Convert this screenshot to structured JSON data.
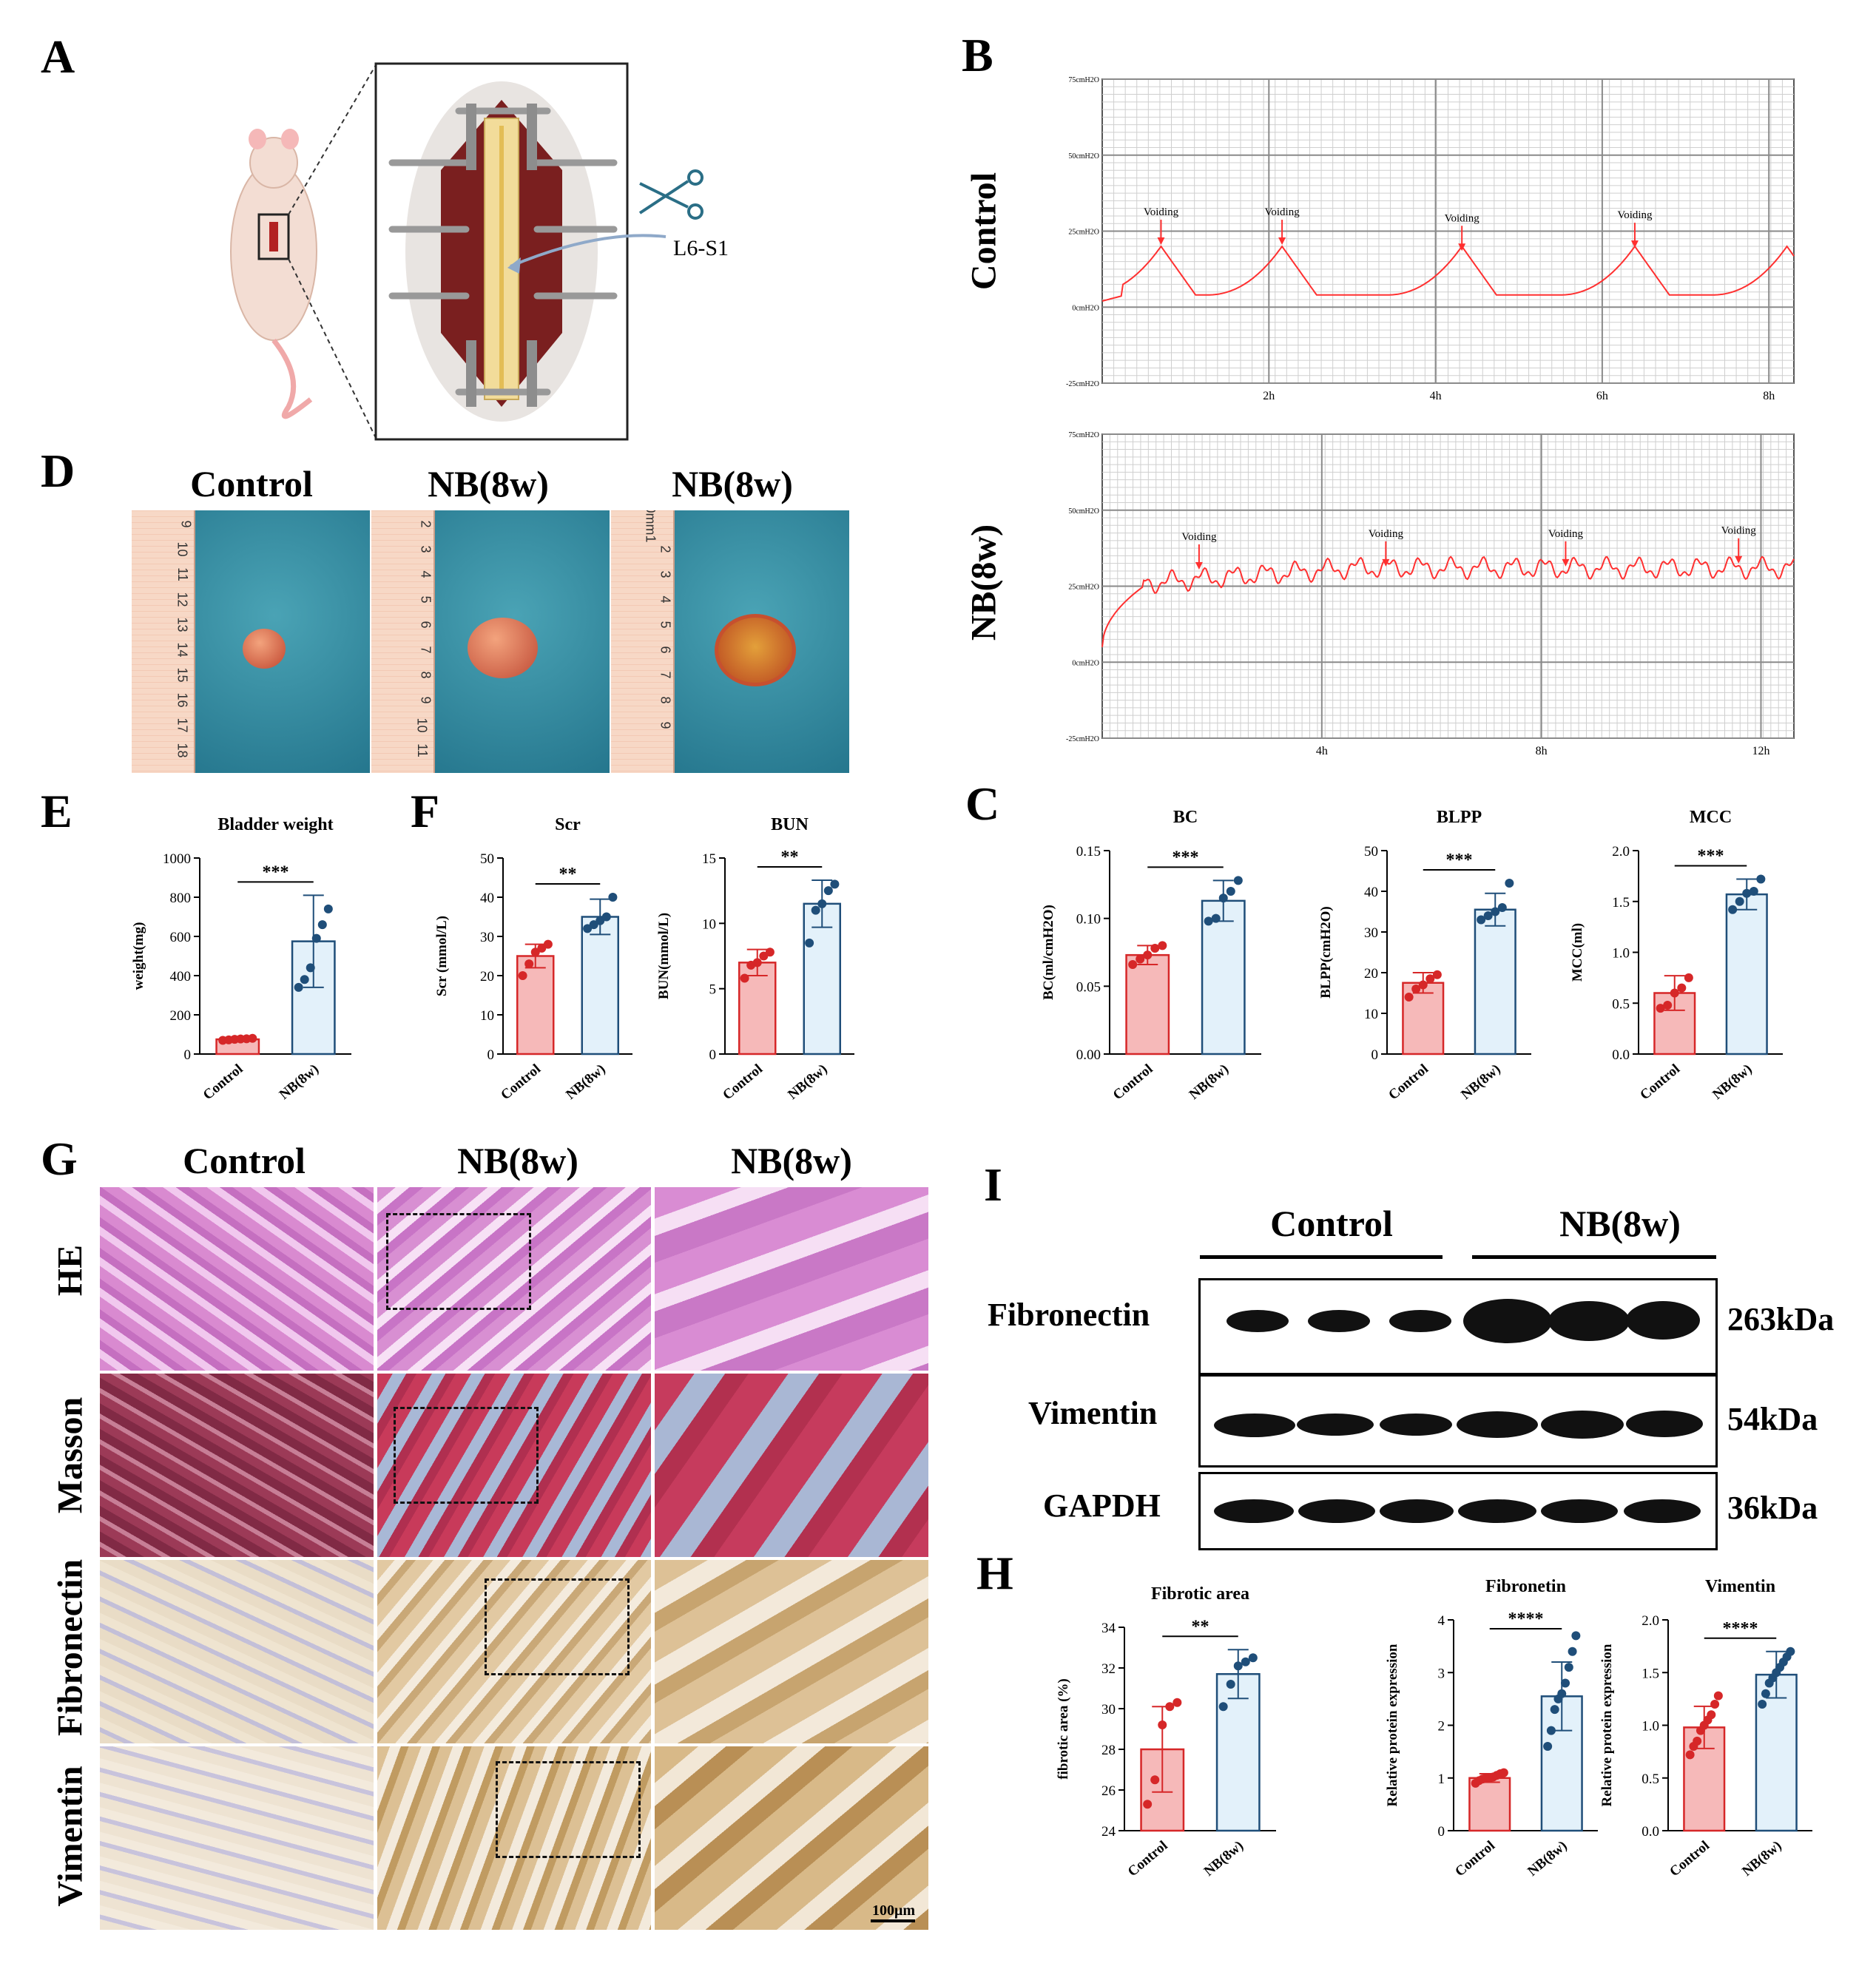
{
  "panels": {
    "A": "A",
    "B": "B",
    "C": "C",
    "D": "D",
    "E": "E",
    "F": "F",
    "G": "G",
    "H": "H",
    "I": "I"
  },
  "schematic": {
    "label": "L6-S1"
  },
  "cystometry": {
    "control": {
      "label": "Control",
      "y_ticks": [
        "75cmH2O",
        "50cmH2O",
        "25cmH2O",
        "0cmH2O",
        "-25cmH2O"
      ],
      "x_ticks": [
        "2h",
        "4h",
        "6h",
        "8h"
      ],
      "annotations": [
        "Voiding",
        "Voiding",
        "Voiding",
        "Voiding"
      ]
    },
    "nb": {
      "label": "NB(8w)",
      "y_ticks": [
        "75cmH2O",
        "50cmH2O",
        "25cmH2O",
        "0cmH2O",
        "-25cmH2O"
      ],
      "x_ticks": [
        "4h",
        "8h",
        "12h"
      ],
      "annotations": [
        "Voiding",
        "Voiding",
        "Voiding",
        "Voiding"
      ]
    }
  },
  "bladder_photos": {
    "titles": [
      "Control",
      "NB(8w)",
      "NB(8w)"
    ],
    "ruler_numbers": [
      [
        "9",
        "10",
        "11",
        "12",
        "13",
        "14",
        "15",
        "16",
        "17",
        "18"
      ],
      [
        "2",
        "3",
        "4",
        "5",
        "6",
        "7",
        "8",
        "9",
        "10",
        "11"
      ],
      [
        "0mm1",
        "2",
        "3",
        "4",
        "5",
        "6",
        "7",
        "8",
        "9"
      ]
    ]
  },
  "histology": {
    "col_titles": [
      "Control",
      "NB(8w)",
      "NB(8w)"
    ],
    "row_labels": [
      "HE",
      "Masson",
      "Fibronectin",
      "Vimentin"
    ],
    "scale_bar": "100μm"
  },
  "western": {
    "groups": [
      "Control",
      "NB(8w)"
    ],
    "rows": [
      {
        "name": "Fibronectin",
        "size": "263kDa"
      },
      {
        "name": "Vimentin",
        "size": "54kDa"
      },
      {
        "name": "GAPDH",
        "size": "36kDa"
      }
    ]
  },
  "colors": {
    "control_fill": "#f6b9b9",
    "control_edge": "#d62728",
    "control_dot": "#d62728",
    "nb_fill": "#e3f1fa",
    "nb_edge": "#1f4e79",
    "nb_dot": "#1f4e79",
    "trace": "#ff3030"
  },
  "chart_data": [
    {
      "id": "E",
      "type": "bar",
      "title": "Bladder weight",
      "ylabel": "weight(mg)",
      "categories": [
        "Control",
        "NB(8w)"
      ],
      "ylim": [
        0,
        1000
      ],
      "yticks": [
        0,
        200,
        400,
        600,
        800,
        1000
      ],
      "values": [
        75,
        575
      ],
      "err": [
        8,
        235
      ],
      "points": [
        [
          70,
          72,
          75,
          77,
          78,
          80
        ],
        [
          340,
          380,
          440,
          590,
          660,
          740
        ]
      ],
      "significance": "***"
    },
    {
      "id": "F1",
      "type": "bar",
      "title": "Scr",
      "ylabel": "Scr (mmol/L)",
      "categories": [
        "Control",
        "NB(8w)"
      ],
      "ylim": [
        0,
        50
      ],
      "yticks": [
        0,
        10,
        20,
        30,
        40,
        50
      ],
      "values": [
        25,
        35
      ],
      "err": [
        3,
        4.5
      ],
      "points": [
        [
          20,
          23,
          26,
          27,
          28
        ],
        [
          32,
          33,
          34,
          35,
          40
        ]
      ],
      "significance": "**"
    },
    {
      "id": "F2",
      "type": "bar",
      "title": "BUN",
      "ylabel": "BUN(mmol/L)",
      "categories": [
        "Control",
        "NB(8w)"
      ],
      "ylim": [
        0,
        15
      ],
      "yticks": [
        0,
        5,
        10,
        15
      ],
      "values": [
        7,
        11.5
      ],
      "err": [
        1,
        1.8
      ],
      "points": [
        [
          5.8,
          6.8,
          7.0,
          7.5,
          7.8
        ],
        [
          8.5,
          11.0,
          11.5,
          12.5,
          13.0
        ]
      ],
      "significance": "**"
    },
    {
      "id": "C1",
      "type": "bar",
      "title": "BC",
      "ylabel": "BC(ml/cmH2O)",
      "categories": [
        "Control",
        "NB(8w)"
      ],
      "ylim": [
        0,
        0.15
      ],
      "yticks": [
        0.0,
        0.05,
        0.1,
        0.15
      ],
      "values": [
        0.073,
        0.113
      ],
      "err": [
        0.007,
        0.015
      ],
      "points": [
        [
          0.066,
          0.07,
          0.073,
          0.078,
          0.08
        ],
        [
          0.098,
          0.1,
          0.115,
          0.12,
          0.128
        ]
      ],
      "significance": "***"
    },
    {
      "id": "C2",
      "type": "bar",
      "title": "BLPP",
      "ylabel": "BLPP(cmH2O)",
      "categories": [
        "Control",
        "NB(8w)"
      ],
      "ylim": [
        0,
        50
      ],
      "yticks": [
        0,
        10,
        20,
        30,
        40,
        50
      ],
      "values": [
        17.5,
        35.5
      ],
      "err": [
        2.5,
        4
      ],
      "points": [
        [
          14,
          16,
          17,
          18.5,
          19.5
        ],
        [
          33,
          34,
          35,
          36,
          42
        ]
      ],
      "significance": "***"
    },
    {
      "id": "C3",
      "type": "bar",
      "title": "MCC",
      "ylabel": "MCC(ml)",
      "categories": [
        "Control",
        "NB(8w)"
      ],
      "ylim": [
        0,
        2.0
      ],
      "yticks": [
        0.0,
        0.5,
        1.0,
        1.5,
        2.0
      ],
      "values": [
        0.6,
        1.57
      ],
      "err": [
        0.17,
        0.15
      ],
      "points": [
        [
          0.45,
          0.48,
          0.6,
          0.65,
          0.75
        ],
        [
          1.42,
          1.5,
          1.58,
          1.6,
          1.72
        ]
      ],
      "significance": "***"
    },
    {
      "id": "H1",
      "type": "bar",
      "title": "Fibrotic area",
      "ylabel": "fibrotic area (%)",
      "categories": [
        "Control",
        "NB(8w)"
      ],
      "ylim": [
        24,
        34
      ],
      "yticks": [
        24,
        26,
        28,
        30,
        32,
        34
      ],
      "values": [
        28,
        31.7
      ],
      "err": [
        2.1,
        1.2
      ],
      "points": [
        [
          25.3,
          26.5,
          29.2,
          30.1,
          30.3
        ],
        [
          30.1,
          31.2,
          32.1,
          32.3,
          32.5
        ]
      ],
      "significance": "**"
    },
    {
      "id": "H2",
      "type": "bar",
      "title": "Fibronetin",
      "ylabel": "Relative protein expression",
      "categories": [
        "Control",
        "NB(8w)"
      ],
      "ylim": [
        0,
        4
      ],
      "yticks": [
        0,
        1,
        2,
        3,
        4
      ],
      "values": [
        1.0,
        2.55
      ],
      "err": [
        0.08,
        0.65
      ],
      "points": [
        [
          0.9,
          0.95,
          0.98,
          1.0,
          1.0,
          1.02,
          1.05,
          1.08,
          1.1
        ],
        [
          1.6,
          1.9,
          2.3,
          2.5,
          2.6,
          2.8,
          3.1,
          3.4,
          3.7
        ]
      ],
      "significance": "****"
    },
    {
      "id": "H3",
      "type": "bar",
      "title": "Vimentin",
      "ylabel": "Relative protein expression",
      "categories": [
        "Control",
        "NB(8w)"
      ],
      "ylim": [
        0,
        2.0
      ],
      "yticks": [
        0.0,
        0.5,
        1.0,
        1.5,
        2.0
      ],
      "values": [
        0.98,
        1.48
      ],
      "err": [
        0.2,
        0.22
      ],
      "points": [
        [
          0.72,
          0.8,
          0.85,
          0.95,
          1.0,
          1.05,
          1.1,
          1.2,
          1.28
        ],
        [
          1.2,
          1.3,
          1.4,
          1.45,
          1.5,
          1.55,
          1.6,
          1.65,
          1.7
        ]
      ],
      "significance": "****"
    }
  ]
}
